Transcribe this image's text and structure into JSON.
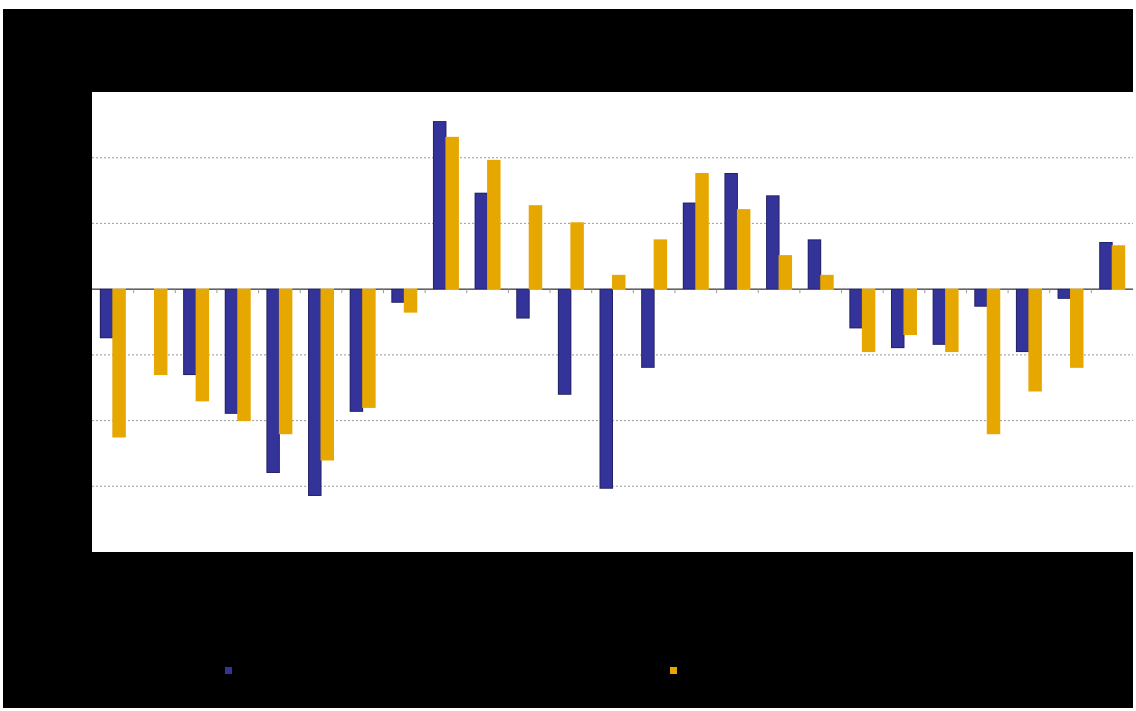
{
  "chart_data": {
    "type": "bar",
    "categories": [
      null,
      null,
      null,
      null,
      null,
      null,
      null,
      null,
      null,
      null,
      null,
      null,
      null,
      null,
      null,
      null,
      null,
      null,
      null,
      null,
      null,
      null,
      null,
      null,
      null
    ],
    "series": [
      {
        "color": "#333399",
        "values": [
          -0.74,
          0,
          -1.3,
          -1.89,
          -2.79,
          -3.14,
          -1.86,
          -0.2,
          2.55,
          1.46,
          -0.44,
          -1.6,
          -3.03,
          -1.19,
          1.31,
          1.76,
          1.42,
          0.75,
          -0.59,
          -0.89,
          -0.84,
          -0.26,
          -0.95,
          -0.14,
          0.71
        ]
      },
      {
        "color": "#e6a800",
        "values": [
          -2.25,
          -1.3,
          -1.7,
          -2.0,
          -2.2,
          -2.6,
          -1.8,
          -0.35,
          2.31,
          1.96,
          1.27,
          1.01,
          0.21,
          0.75,
          1.76,
          1.21,
          0.51,
          0.21,
          -0.95,
          -0.69,
          -0.95,
          -2.2,
          -1.55,
          -1.19,
          0.66
        ]
      }
    ],
    "ylim": [
      -4,
      3
    ],
    "yticks": [
      -3,
      -2,
      -1,
      0,
      1,
      2
    ],
    "grid": true
  }
}
